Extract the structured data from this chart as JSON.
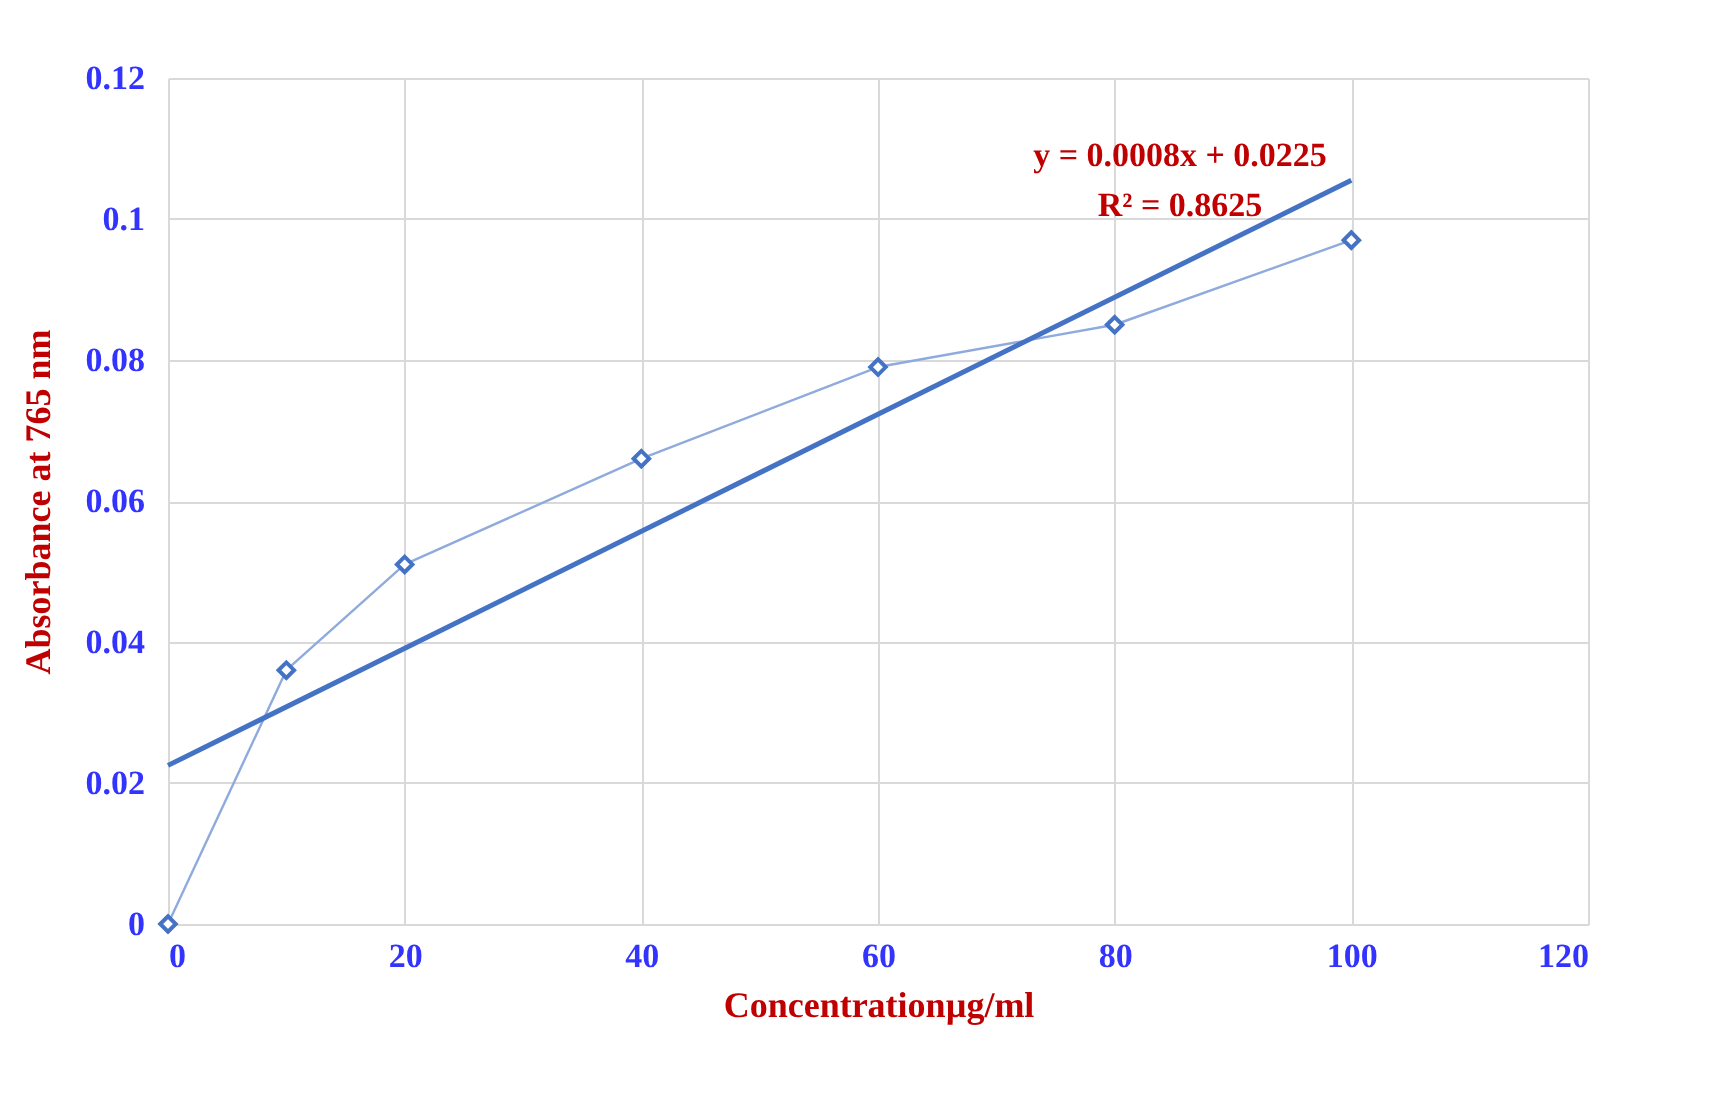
{
  "chart_data": {
    "type": "line",
    "xlabel": "Concentrationµg/ml",
    "ylabel": "Absorbance at 765 nm",
    "x": [
      0,
      10,
      20,
      40,
      60,
      80,
      100
    ],
    "series": [
      {
        "color": "#8faadc",
        "marker": "diamond",
        "values": [
          0,
          0.036,
          0.051,
          0.066,
          0.079,
          0.085,
          0.097
        ]
      },
      {
        "color": "#4472c4",
        "marker": "none",
        "x": [
          0,
          100
        ],
        "values": [
          0.0225,
          0.1055
        ]
      }
    ],
    "annotations": [
      "y = 0.0008x + 0.0225",
      "R² = 0.8625"
    ],
    "xlim": [
      0,
      120
    ],
    "xticks": [
      0,
      20,
      40,
      60,
      80,
      100,
      120
    ],
    "ylim": [
      0,
      0.12
    ],
    "yticks": [
      0,
      0.02,
      0.04,
      0.06,
      0.08,
      0.1,
      0.12
    ],
    "grid": true
  }
}
